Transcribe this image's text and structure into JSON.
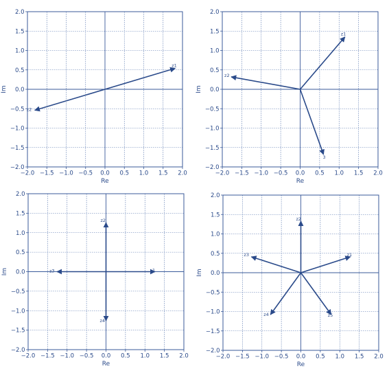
{
  "colors": {
    "vector": "#2a4a8a",
    "grid": "#5a78b0",
    "axis_frame": "#3a5a9a",
    "text": "#2a4a8a"
  },
  "chart_data": [
    {
      "type": "line",
      "title": "",
      "xlabel": "Re",
      "ylabel": "Im",
      "xlim": [
        -2.0,
        2.0
      ],
      "ylim": [
        -2.0,
        2.0
      ],
      "xticks": [
        "−2.0",
        "−1.5",
        "−1.0",
        "−0.5",
        "0.0",
        "0.5",
        "1.0",
        "1.5",
        "2.0"
      ],
      "yticks": [
        "2.0",
        "1.5",
        "1.0",
        "0.5",
        "0.0",
        "−0.5",
        "−1.0",
        "−1.5",
        "−2.0"
      ],
      "grid": true,
      "vectors": [
        {
          "label": "z1",
          "x": 1.81,
          "y": 0.54
        },
        {
          "label": "z2",
          "x": -1.81,
          "y": -0.54
        }
      ]
    },
    {
      "type": "line",
      "title": "",
      "xlabel": "Re",
      "ylabel": "Im",
      "xlim": [
        -2.0,
        2.0
      ],
      "ylim": [
        -2.0,
        2.0
      ],
      "xticks": [
        "−2.0",
        "−1.5",
        "−1.0",
        "−0.5",
        "0.0",
        "0.5",
        "1.0",
        "1.5",
        "2.0"
      ],
      "yticks": [
        "2.0",
        "1.5",
        "1.0",
        "0.5",
        "0.0",
        "−0.5",
        "−1.0",
        "−1.5",
        "−2.0"
      ],
      "grid": true,
      "vectors": [
        {
          "label": "z1",
          "x": 1.15,
          "y": 1.35
        },
        {
          "label": "z2",
          "x": -1.77,
          "y": 0.32
        },
        {
          "label": "3",
          "x": 0.6,
          "y": -1.68
        }
      ]
    },
    {
      "type": "line",
      "title": "",
      "xlabel": "Re",
      "ylabel": "Im",
      "xlim": [
        -2.0,
        2.0
      ],
      "ylim": [
        -2.0,
        2.0
      ],
      "xticks": [
        "−2.0",
        "−1.5",
        "−1.0",
        "−0.5",
        "0.0",
        "0.5",
        "1.0",
        "1.5",
        "2.0"
      ],
      "yticks": [
        "2.0",
        "1.5",
        "1.0",
        "0.5",
        "0.0",
        "−0.5",
        "−1.0",
        "−1.5",
        "−2.0"
      ],
      "grid": true,
      "vectors": [
        {
          "label": "1",
          "x": 1.26,
          "y": 0.0
        },
        {
          "label": "z2",
          "x": 0.0,
          "y": 1.26
        },
        {
          "label": "z3",
          "x": -1.26,
          "y": 0.0
        },
        {
          "label": "z4",
          "x": 0.0,
          "y": -1.26
        }
      ]
    },
    {
      "type": "line",
      "title": "",
      "xlabel": "Re",
      "ylabel": "Im",
      "xlim": [
        -2.0,
        2.0
      ],
      "ylim": [
        -2.0,
        2.0
      ],
      "xticks": [
        "−2.0",
        "−1.5",
        "−1.0",
        "−0.5",
        "0.0",
        "0.5",
        "1.0",
        "1.5",
        "2.0"
      ],
      "yticks": [
        "2.0",
        "1.5",
        "1.0",
        "0.5",
        "0.0",
        "−0.5",
        "−1.0",
        "−1.5",
        "−2.0"
      ],
      "grid": true,
      "vectors": [
        {
          "label": "z1",
          "x": 1.27,
          "y": 0.41
        },
        {
          "label": "z2",
          "x": 0.0,
          "y": 1.33
        },
        {
          "label": "z3",
          "x": -1.27,
          "y": 0.41
        },
        {
          "label": "z4",
          "x": -0.78,
          "y": -1.08
        },
        {
          "label": "z5",
          "x": 0.78,
          "y": -1.08
        }
      ]
    }
  ]
}
